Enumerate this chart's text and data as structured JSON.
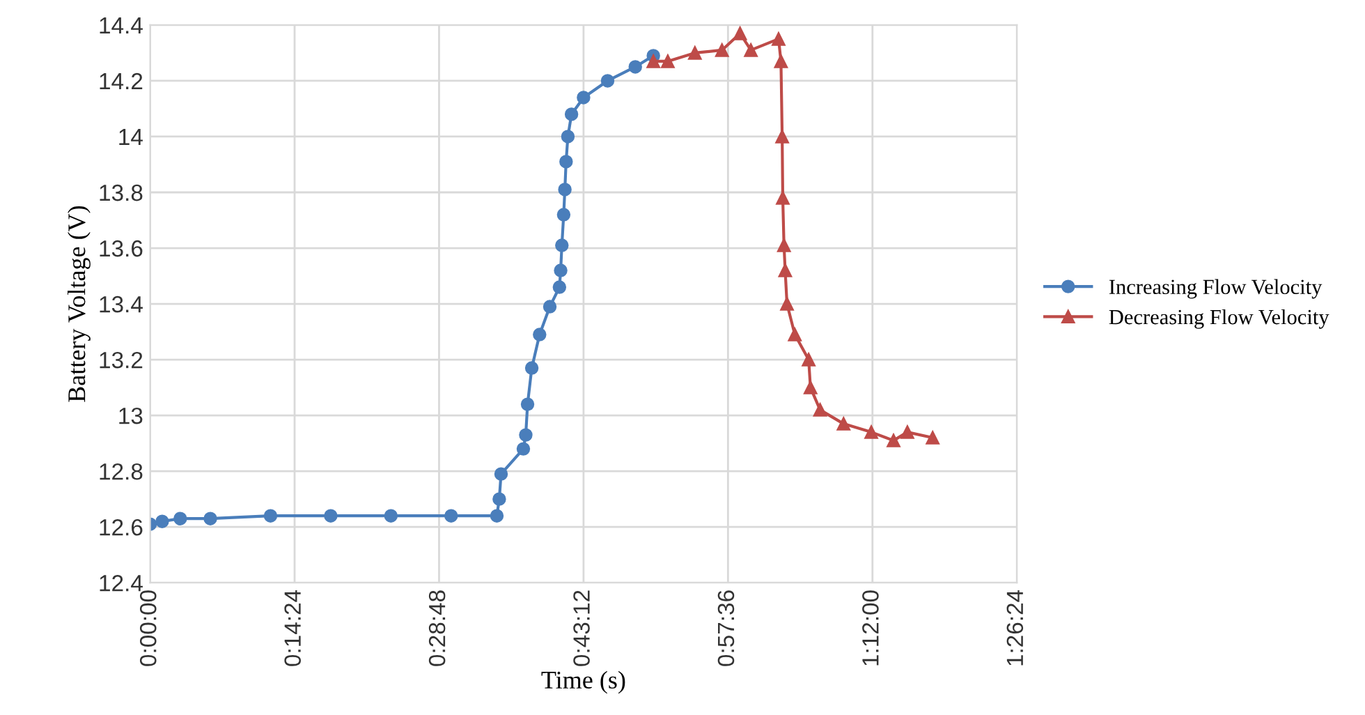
{
  "chart_data": {
    "type": "line",
    "xlabel": "Time (s)",
    "ylabel": "Battery Voltage (V)",
    "xlim": [
      0,
      1.44
    ],
    "ylim": [
      12.4,
      14.4
    ],
    "xticks": [
      {
        "value": 0,
        "label": "0:00:00"
      },
      {
        "value": 0.24,
        "label": "0:14:24"
      },
      {
        "value": 0.48,
        "label": "0:28:48"
      },
      {
        "value": 0.72,
        "label": "0:43:12"
      },
      {
        "value": 0.96,
        "label": "0:57:36"
      },
      {
        "value": 1.2,
        "label": "1:12:00"
      },
      {
        "value": 1.44,
        "label": "1:26:24"
      }
    ],
    "yticks": [
      {
        "value": 12.4,
        "label": "12.4"
      },
      {
        "value": 12.6,
        "label": "12.6"
      },
      {
        "value": 12.8,
        "label": "12.8"
      },
      {
        "value": 13,
        "label": "13"
      },
      {
        "value": 13.2,
        "label": "13.2"
      },
      {
        "value": 13.4,
        "label": "13.4"
      },
      {
        "value": 13.6,
        "label": "13.6"
      },
      {
        "value": 13.8,
        "label": "13.8"
      },
      {
        "value": 14,
        "label": "14"
      },
      {
        "value": 14.2,
        "label": "14.2"
      },
      {
        "value": 14.4,
        "label": "14.4"
      }
    ],
    "grid": true,
    "legend": "right",
    "series": [
      {
        "name": "Increasing Flow Velocity",
        "color": "#4a7ebb",
        "marker": "circle",
        "x": [
          0,
          0.02,
          0.05,
          0.1,
          0.2,
          0.3,
          0.4,
          0.5,
          0.576,
          0.58,
          0.583,
          0.62,
          0.624,
          0.627,
          0.634,
          0.647,
          0.664,
          0.68,
          0.682,
          0.684,
          0.687,
          0.689,
          0.691,
          0.694,
          0.7,
          0.72,
          0.76,
          0.806,
          0.836
        ],
        "values": [
          12.61,
          12.62,
          12.63,
          12.63,
          12.64,
          12.64,
          12.64,
          12.64,
          12.64,
          12.7,
          12.79,
          12.88,
          12.93,
          13.04,
          13.17,
          13.29,
          13.39,
          13.46,
          13.52,
          13.61,
          13.72,
          13.81,
          13.91,
          14.0,
          14.08,
          14.14,
          14.2,
          14.25,
          14.29
        ]
      },
      {
        "name": "Decreasing Flow Velocity",
        "color": "#be4b48",
        "marker": "triangle",
        "x": [
          0.836,
          0.86,
          0.905,
          0.95,
          0.98,
          0.998,
          1.044,
          1.048,
          1.05,
          1.051,
          1.053,
          1.055,
          1.058,
          1.071,
          1.094,
          1.097,
          1.113,
          1.152,
          1.198,
          1.235,
          1.258,
          1.3
        ],
        "values": [
          14.27,
          14.27,
          14.3,
          14.31,
          14.37,
          14.31,
          14.35,
          14.27,
          14.0,
          13.78,
          13.61,
          13.52,
          13.4,
          13.29,
          13.2,
          13.1,
          13.02,
          12.97,
          12.94,
          12.91,
          12.94,
          12.92
        ]
      }
    ]
  }
}
